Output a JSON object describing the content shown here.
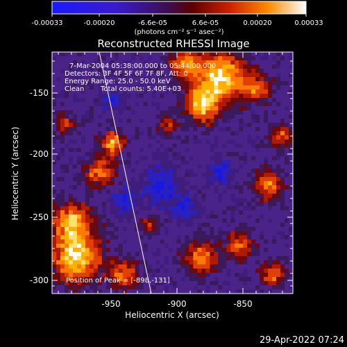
{
  "colorbar": {
    "ticks": [
      "-0.00033",
      "-0.00020",
      "-6.6e-05",
      "6.6e-05",
      "0.00020",
      "0.00033"
    ],
    "unit_text": "(photons cm⁻² s⁻¹ asec⁻²)"
  },
  "plot": {
    "title": "Reconstructed RHESSI Image",
    "xlabel": "Heliocentric X (arcsec)",
    "ylabel": "Heliocentric Y (arcsec)",
    "xticks": [
      "-950",
      "-900",
      "-850"
    ],
    "yticks": [
      "-150",
      "-200",
      "-250",
      "-300"
    ],
    "info": {
      "time": "7-Mar-2004 05:38:00.000 to 05:44:00.000",
      "detectors": "Detectors: 3F 4F 5F 6F 7F 8F, Att: 0",
      "energy": "Energy Range: 25.0 - 50.0 keV",
      "method": "Clean",
      "counts": "Total counts: 5.40E+03"
    },
    "peak": "Position of Peak = [-898,-131]"
  },
  "footer": {
    "timestamp": "29-Apr-2022 07:24"
  }
}
